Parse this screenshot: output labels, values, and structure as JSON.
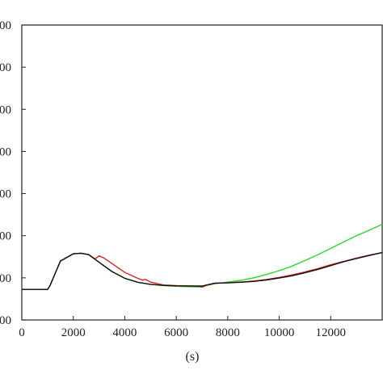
{
  "chart_data": {
    "type": "line",
    "title": "",
    "xlabel": "(s)",
    "ylabel": "",
    "xlim": [
      0,
      14000
    ],
    "x_ticks": [
      0,
      2000,
      4000,
      6000,
      8000,
      10000,
      12000
    ],
    "x_tick_labels": [
      "0",
      "2000",
      "4000",
      "6000",
      "8000",
      "10000",
      "12000"
    ],
    "y_tick_labels": [
      "00",
      "00",
      "00",
      "00",
      "00",
      "00",
      "00",
      "00"
    ],
    "grid": false,
    "legend": "none",
    "series": [
      {
        "color": "#22dd22",
        "points": [
          [
            0,
            0.725
          ],
          [
            1000,
            0.725
          ],
          [
            1100,
            0.82
          ],
          [
            1500,
            1.4
          ],
          [
            2000,
            1.57
          ],
          [
            2300,
            1.585
          ],
          [
            2600,
            1.55
          ],
          [
            3000,
            1.37
          ],
          [
            3500,
            1.15
          ],
          [
            4000,
            0.99
          ],
          [
            4500,
            0.895
          ],
          [
            5000,
            0.845
          ],
          [
            5500,
            0.817
          ],
          [
            6000,
            0.8
          ],
          [
            6500,
            0.788
          ],
          [
            7000,
            0.782
          ],
          [
            7200,
            0.82
          ],
          [
            7500,
            0.86
          ],
          [
            8000,
            0.9
          ],
          [
            8500,
            0.94
          ],
          [
            9000,
            1.0
          ],
          [
            9500,
            1.08
          ],
          [
            10000,
            1.17
          ],
          [
            10500,
            1.28
          ],
          [
            11000,
            1.41
          ],
          [
            11500,
            1.55
          ],
          [
            12000,
            1.7
          ],
          [
            12500,
            1.85
          ],
          [
            13000,
            2.0
          ],
          [
            13500,
            2.13
          ],
          [
            14000,
            2.27
          ]
        ]
      },
      {
        "color": "#dd2222",
        "points": [
          [
            0,
            0.725
          ],
          [
            1000,
            0.725
          ],
          [
            1100,
            0.82
          ],
          [
            1500,
            1.4
          ],
          [
            2000,
            1.57
          ],
          [
            2300,
            1.585
          ],
          [
            2600,
            1.55
          ],
          [
            2850,
            1.45
          ],
          [
            3000,
            1.52
          ],
          [
            3200,
            1.47
          ],
          [
            3500,
            1.34
          ],
          [
            4000,
            1.13
          ],
          [
            4500,
            0.99
          ],
          [
            4700,
            0.945
          ],
          [
            4800,
            0.965
          ],
          [
            5000,
            0.9
          ],
          [
            5500,
            0.83
          ],
          [
            6000,
            0.815
          ],
          [
            6500,
            0.81
          ],
          [
            6900,
            0.8
          ],
          [
            7000,
            0.78
          ],
          [
            7200,
            0.83
          ],
          [
            7500,
            0.87
          ],
          [
            8000,
            0.885
          ],
          [
            8500,
            0.9
          ],
          [
            9000,
            0.925
          ],
          [
            9500,
            0.96
          ],
          [
            10000,
            1.01
          ],
          [
            10500,
            1.07
          ],
          [
            11000,
            1.14
          ],
          [
            11500,
            1.22
          ],
          [
            12000,
            1.31
          ],
          [
            12500,
            1.39
          ],
          [
            13000,
            1.47
          ],
          [
            13500,
            1.54
          ],
          [
            14000,
            1.6
          ]
        ]
      },
      {
        "color": "#111111",
        "points": [
          [
            0,
            0.725
          ],
          [
            1000,
            0.725
          ],
          [
            1100,
            0.82
          ],
          [
            1500,
            1.4
          ],
          [
            2000,
            1.57
          ],
          [
            2300,
            1.585
          ],
          [
            2600,
            1.55
          ],
          [
            3000,
            1.37
          ],
          [
            3500,
            1.15
          ],
          [
            4000,
            0.99
          ],
          [
            4500,
            0.895
          ],
          [
            5000,
            0.845
          ],
          [
            5500,
            0.82
          ],
          [
            6000,
            0.81
          ],
          [
            6500,
            0.808
          ],
          [
            7000,
            0.805
          ],
          [
            7200,
            0.835
          ],
          [
            7500,
            0.875
          ],
          [
            8000,
            0.88
          ],
          [
            8500,
            0.895
          ],
          [
            9000,
            0.915
          ],
          [
            9500,
            0.95
          ],
          [
            10000,
            0.995
          ],
          [
            10500,
            1.05
          ],
          [
            11000,
            1.12
          ],
          [
            11500,
            1.2
          ],
          [
            12000,
            1.29
          ],
          [
            12500,
            1.38
          ],
          [
            13000,
            1.46
          ],
          [
            13500,
            1.53
          ],
          [
            14000,
            1.6
          ]
        ]
      }
    ]
  }
}
